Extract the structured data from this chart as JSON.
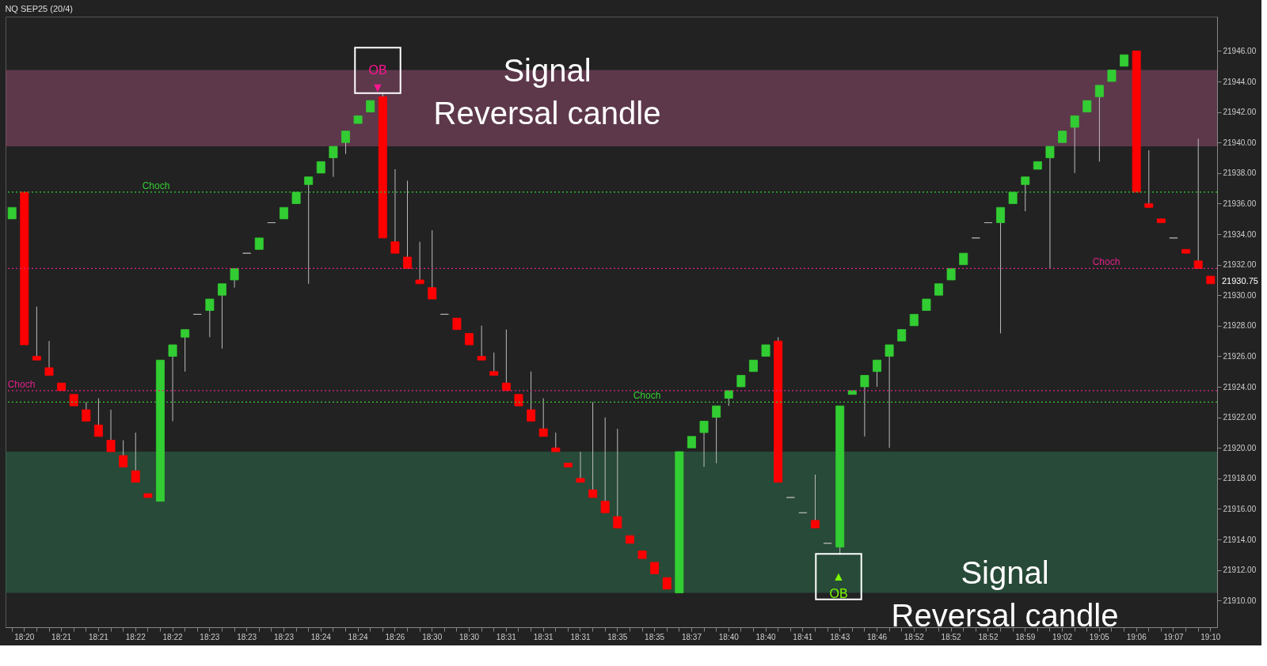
{
  "chart_data": {
    "type": "candlestick",
    "title": "NQ SEP25 (20/4)",
    "categories": [
      null,
      "18:20",
      null,
      null,
      "18:21",
      null,
      null,
      "18:21",
      null,
      null,
      "18:22",
      null,
      null,
      "18:22",
      null,
      null,
      "18:23",
      null,
      null,
      "18:23",
      null,
      null,
      "18:23",
      null,
      null,
      "18:24",
      null,
      null,
      "18:24",
      null,
      null,
      "18:26",
      null,
      null,
      "18:30",
      null,
      null,
      "18:30",
      null,
      null,
      "18:31",
      null,
      null,
      "18:31",
      null,
      null,
      "18:31",
      null,
      null,
      "18:35",
      null,
      null,
      "18:35",
      null,
      null,
      "18:37",
      null,
      null,
      "18:40",
      null,
      null,
      "18:40",
      null,
      null,
      "18:41",
      null,
      null,
      "18:43",
      null,
      null,
      "18:46",
      null,
      null,
      "18:52",
      null,
      null,
      "18:52",
      null,
      null,
      "18:52",
      null,
      null,
      "18:59",
      null,
      null,
      "19:02",
      null,
      null,
      "19:05",
      null,
      null,
      "19:06",
      null,
      null,
      "19:07",
      null,
      null,
      "19:10"
    ],
    "ohlc": [
      [
        21935,
        21935.75,
        21935,
        21935.75
      ],
      [
        21936.75,
        21936.75,
        21926.75,
        21926.75
      ],
      [
        21926,
        21929.25,
        21925.75,
        21925.75
      ],
      [
        21925.25,
        21927,
        21924.75,
        21924.75
      ],
      [
        21924.25,
        21924.25,
        21923.75,
        21923.75
      ],
      [
        21923.5,
        21923.5,
        21922.75,
        21922.75
      ],
      [
        21922.5,
        21923,
        21921.75,
        21921.75
      ],
      [
        21921.5,
        21923.25,
        21920.75,
        21920.75
      ],
      [
        21920.5,
        21922.5,
        21919.75,
        21919.75
      ],
      [
        21919.5,
        21920.5,
        21918.75,
        21918.75
      ],
      [
        21918.5,
        21921,
        21917.75,
        21917.75
      ],
      [
        21917,
        21917,
        21916.75,
        21916.75
      ],
      [
        21916.5,
        21925.75,
        21916.5,
        21925.75
      ],
      [
        21926,
        21926.75,
        21921.75,
        21926.75
      ],
      [
        21927.25,
        21927.75,
        21925,
        21927.75
      ],
      [
        21928.75,
        21928.75,
        21928.75,
        21928.75
      ],
      [
        21929,
        21929.75,
        21927.25,
        21929.75
      ],
      [
        21930,
        21930.75,
        21926.5,
        21930.75
      ],
      [
        21931,
        21931.75,
        21930.5,
        21931.75
      ],
      [
        21932.75,
        21932.75,
        21932.75,
        21932.75
      ],
      [
        21933,
        21933.75,
        21933,
        21933.75
      ],
      [
        21934.75,
        21934.75,
        21934.75,
        21934.75
      ],
      [
        21935,
        21935.75,
        21935,
        21935.75
      ],
      [
        21936,
        21936.75,
        21936,
        21936.75
      ],
      [
        21937.25,
        21937.75,
        21930.75,
        21937.75
      ],
      [
        21938,
        21938.75,
        21938,
        21938.75
      ],
      [
        21939,
        21939.75,
        21937.75,
        21939.75
      ],
      [
        21940,
        21940.75,
        21939.25,
        21940.75
      ],
      [
        21941.25,
        21941.75,
        21941.25,
        21941.75
      ],
      [
        21942,
        21942.75,
        21942,
        21942.75
      ],
      [
        21943,
        21943.25,
        21933.75,
        21933.75
      ],
      [
        21933.5,
        21938.25,
        21932.75,
        21932.75
      ],
      [
        21932.5,
        21937.5,
        21931.75,
        21931.75
      ],
      [
        21931,
        21933.5,
        21930.75,
        21930.75
      ],
      [
        21930.5,
        21934.25,
        21929.75,
        21929.75
      ],
      [
        21928.75,
        21928.75,
        21928.75,
        21928.75
      ],
      [
        21928.5,
        21928.5,
        21927.75,
        21927.75
      ],
      [
        21927.5,
        21927.5,
        21926.75,
        21926.75
      ],
      [
        21926,
        21928,
        21925.75,
        21925.75
      ],
      [
        21925,
        21926.25,
        21924.75,
        21924.75
      ],
      [
        21924.25,
        21927.75,
        21923.75,
        21923.75
      ],
      [
        21923.5,
        21923.5,
        21922.75,
        21922.75
      ],
      [
        21922.5,
        21925,
        21921.75,
        21921.75
      ],
      [
        21921.25,
        21923.25,
        21920.75,
        21920.75
      ],
      [
        21920,
        21921,
        21919.75,
        21919.75
      ],
      [
        21919,
        21919,
        21918.75,
        21918.75
      ],
      [
        21918,
        21919.75,
        21917.75,
        21917.75
      ],
      [
        21917.25,
        21923,
        21916.75,
        21916.75
      ],
      [
        21916.5,
        21922,
        21915.75,
        21915.75
      ],
      [
        21915.5,
        21921.25,
        21914.75,
        21914.75
      ],
      [
        21914.25,
        21914.25,
        21913.75,
        21913.75
      ],
      [
        21913.25,
        21913.25,
        21912.75,
        21912.75
      ],
      [
        21912.5,
        21912.5,
        21911.75,
        21911.75
      ],
      [
        21911.5,
        21911.5,
        21910.75,
        21910.75
      ],
      [
        21910.5,
        21919.75,
        21910.5,
        21919.75
      ],
      [
        21920,
        21920.75,
        21920,
        21920.75
      ],
      [
        21921,
        21921.75,
        21918.75,
        21921.75
      ],
      [
        21922,
        21922.75,
        21919,
        21922.75
      ],
      [
        21923.25,
        21923.75,
        21922.75,
        21923.75
      ],
      [
        21924,
        21924.75,
        21924,
        21924.75
      ],
      [
        21925,
        21925.75,
        21925,
        21925.75
      ],
      [
        21926,
        21926.75,
        21926,
        21926.75
      ],
      [
        21927,
        21927.25,
        21917.75,
        21917.75
      ],
      [
        21916.75,
        21916.75,
        21916.75,
        21916.75
      ],
      [
        21915.75,
        21915.75,
        21915.75,
        21915.75
      ],
      [
        21915.25,
        21918.25,
        21914.75,
        21914.75
      ],
      [
        21913.75,
        21913.75,
        21913.75,
        21913.75
      ],
      [
        21913.5,
        21922.75,
        21913,
        21922.75
      ],
      [
        21923.5,
        21923.75,
        21923.5,
        21923.75
      ],
      [
        21924,
        21924.75,
        21920.75,
        21924.75
      ],
      [
        21925,
        21925.75,
        21924,
        21925.75
      ],
      [
        21926,
        21926.75,
        21920,
        21926.75
      ],
      [
        21927,
        21927.75,
        21927,
        21927.75
      ],
      [
        21928,
        21928.75,
        21928,
        21928.75
      ],
      [
        21929,
        21929.75,
        21929,
        21929.75
      ],
      [
        21930,
        21930.75,
        21930,
        21930.75
      ],
      [
        21931,
        21931.75,
        21931,
        21931.75
      ],
      [
        21932,
        21932.75,
        21932,
        21932.75
      ],
      [
        21933.75,
        21933.75,
        21933.75,
        21933.75
      ],
      [
        21934.75,
        21934.75,
        21934.75,
        21934.75
      ],
      [
        21934.75,
        21935.75,
        21927.5,
        21935.75
      ],
      [
        21936,
        21936.75,
        21936,
        21936.75
      ],
      [
        21937.25,
        21937.75,
        21935.5,
        21937.75
      ],
      [
        21938.25,
        21938.75,
        21938.25,
        21938.75
      ],
      [
        21939,
        21939.75,
        21931.75,
        21939.75
      ],
      [
        21940,
        21940.75,
        21940,
        21940.75
      ],
      [
        21941,
        21941.75,
        21938,
        21941.75
      ],
      [
        21942,
        21942.75,
        21942,
        21942.75
      ],
      [
        21943,
        21943.75,
        21938.75,
        21943.75
      ],
      [
        21944,
        21944.75,
        21944,
        21944.75
      ],
      [
        21945,
        21945.75,
        21945,
        21945.75
      ],
      [
        21946,
        21946,
        21936.75,
        21936.75
      ],
      [
        21936,
        21939.5,
        21935.75,
        21935.75
      ],
      [
        21935,
        21935,
        21934.75,
        21934.75
      ],
      [
        21933.75,
        21933.75,
        21933.75,
        21933.75
      ],
      [
        21933,
        21933,
        21932.75,
        21932.75
      ],
      [
        21932.25,
        21940.25,
        21931.75,
        21931.75
      ],
      [
        21931.25,
        21931.25,
        21930.75,
        21930.75
      ]
    ],
    "colors": [
      "#32cd32",
      "#ff0000",
      "#ff0000",
      "#ff0000",
      "#ff0000",
      "#ff0000",
      "#ff0000",
      "#ff0000",
      "#ff0000",
      "#ff0000",
      "#ff0000",
      "#ff0000",
      "#32cd32",
      "#32cd32",
      "#32cd32",
      "#c0c0c0",
      "#32cd32",
      "#32cd32",
      "#32cd32",
      "#c0c0c0",
      "#32cd32",
      "#c0c0c0",
      "#32cd32",
      "#32cd32",
      "#32cd32",
      "#32cd32",
      "#32cd32",
      "#32cd32",
      "#32cd32",
      "#32cd32",
      "#ff0000",
      "#ff0000",
      "#ff0000",
      "#ff0000",
      "#ff0000",
      "#c0c0c0",
      "#ff0000",
      "#ff0000",
      "#ff0000",
      "#ff0000",
      "#ff0000",
      "#ff0000",
      "#ff0000",
      "#ff0000",
      "#ff0000",
      "#ff0000",
      "#ff0000",
      "#ff0000",
      "#ff0000",
      "#ff0000",
      "#ff0000",
      "#ff0000",
      "#ff0000",
      "#ff0000",
      "#32cd32",
      "#32cd32",
      "#32cd32",
      "#32cd32",
      "#32cd32",
      "#32cd32",
      "#32cd32",
      "#32cd32",
      "#ff0000",
      "#c0c0c0",
      "#c0c0c0",
      "#ff0000",
      "#c0c0c0",
      "#32cd32",
      "#32cd32",
      "#32cd32",
      "#32cd32",
      "#32cd32",
      "#32cd32",
      "#32cd32",
      "#32cd32",
      "#32cd32",
      "#32cd32",
      "#32cd32",
      "#c0c0c0",
      "#c0c0c0",
      "#32cd32",
      "#32cd32",
      "#32cd32",
      "#32cd32",
      "#32cd32",
      "#32cd32",
      "#32cd32",
      "#32cd32",
      "#32cd32",
      "#32cd32",
      "#32cd32",
      "#ff0000",
      "#ff0000",
      "#ff0000",
      "#c0c0c0",
      "#ff0000",
      "#ff0000",
      "#ff0000"
    ],
    "ylim": [
      21908.25,
      21948.25
    ],
    "yticks": [
      {
        "value": 21910,
        "label": "21910.00"
      },
      {
        "value": 21912,
        "label": "21912.00"
      },
      {
        "value": 21914,
        "label": "21914.00"
      },
      {
        "value": 21916,
        "label": "21916.00"
      },
      {
        "value": 21918,
        "label": "21918.00"
      },
      {
        "value": 21920,
        "label": "21920.00"
      },
      {
        "value": 21922,
        "label": "21922.00"
      },
      {
        "value": 21924,
        "label": "21924.00"
      },
      {
        "value": 21926,
        "label": "21926.00"
      },
      {
        "value": 21928,
        "label": "21928.00"
      },
      {
        "value": 21930,
        "label": "21930.00"
      },
      {
        "value": 21932,
        "label": "21932.00"
      },
      {
        "value": 21934,
        "label": "21934.00"
      },
      {
        "value": 21936,
        "label": "21936.00"
      },
      {
        "value": 21938,
        "label": "21938.00"
      },
      {
        "value": 21940,
        "label": "21940.00"
      },
      {
        "value": 21942,
        "label": "21942.00"
      },
      {
        "value": 21944,
        "label": "21944.00"
      },
      {
        "value": 21946,
        "label": "21946.00"
      }
    ],
    "bands": [
      {
        "axis": "y",
        "from": 21939.75,
        "to": 21944.75,
        "color": "#8e4a6e"
      },
      {
        "axis": "y",
        "from": 21910.5,
        "to": 21919.75,
        "color": "#2e6b4a"
      }
    ],
    "ref_lines": [
      {
        "axis": "y",
        "value": 21936.75,
        "label": "Choch",
        "color": "#32cd32",
        "line_style": "dotted"
      },
      {
        "axis": "y",
        "value": 21923.75,
        "label": "Choch",
        "color": "#e0218a",
        "line_style": "dotted"
      },
      {
        "axis": "y",
        "value": 21923,
        "label": "Choch",
        "color": "#32cd32",
        "line_style": "dotted"
      },
      {
        "axis": "y",
        "value": 21931.75,
        "label": "Choch",
        "color": "#e0218a",
        "line_style": "dotted"
      }
    ],
    "annotations": [
      "Signal\nReversal candle",
      "Signal\nReversal candle",
      "OB\n▼",
      "▲\nOB",
      "21930.75"
    ],
    "grid": false
  }
}
